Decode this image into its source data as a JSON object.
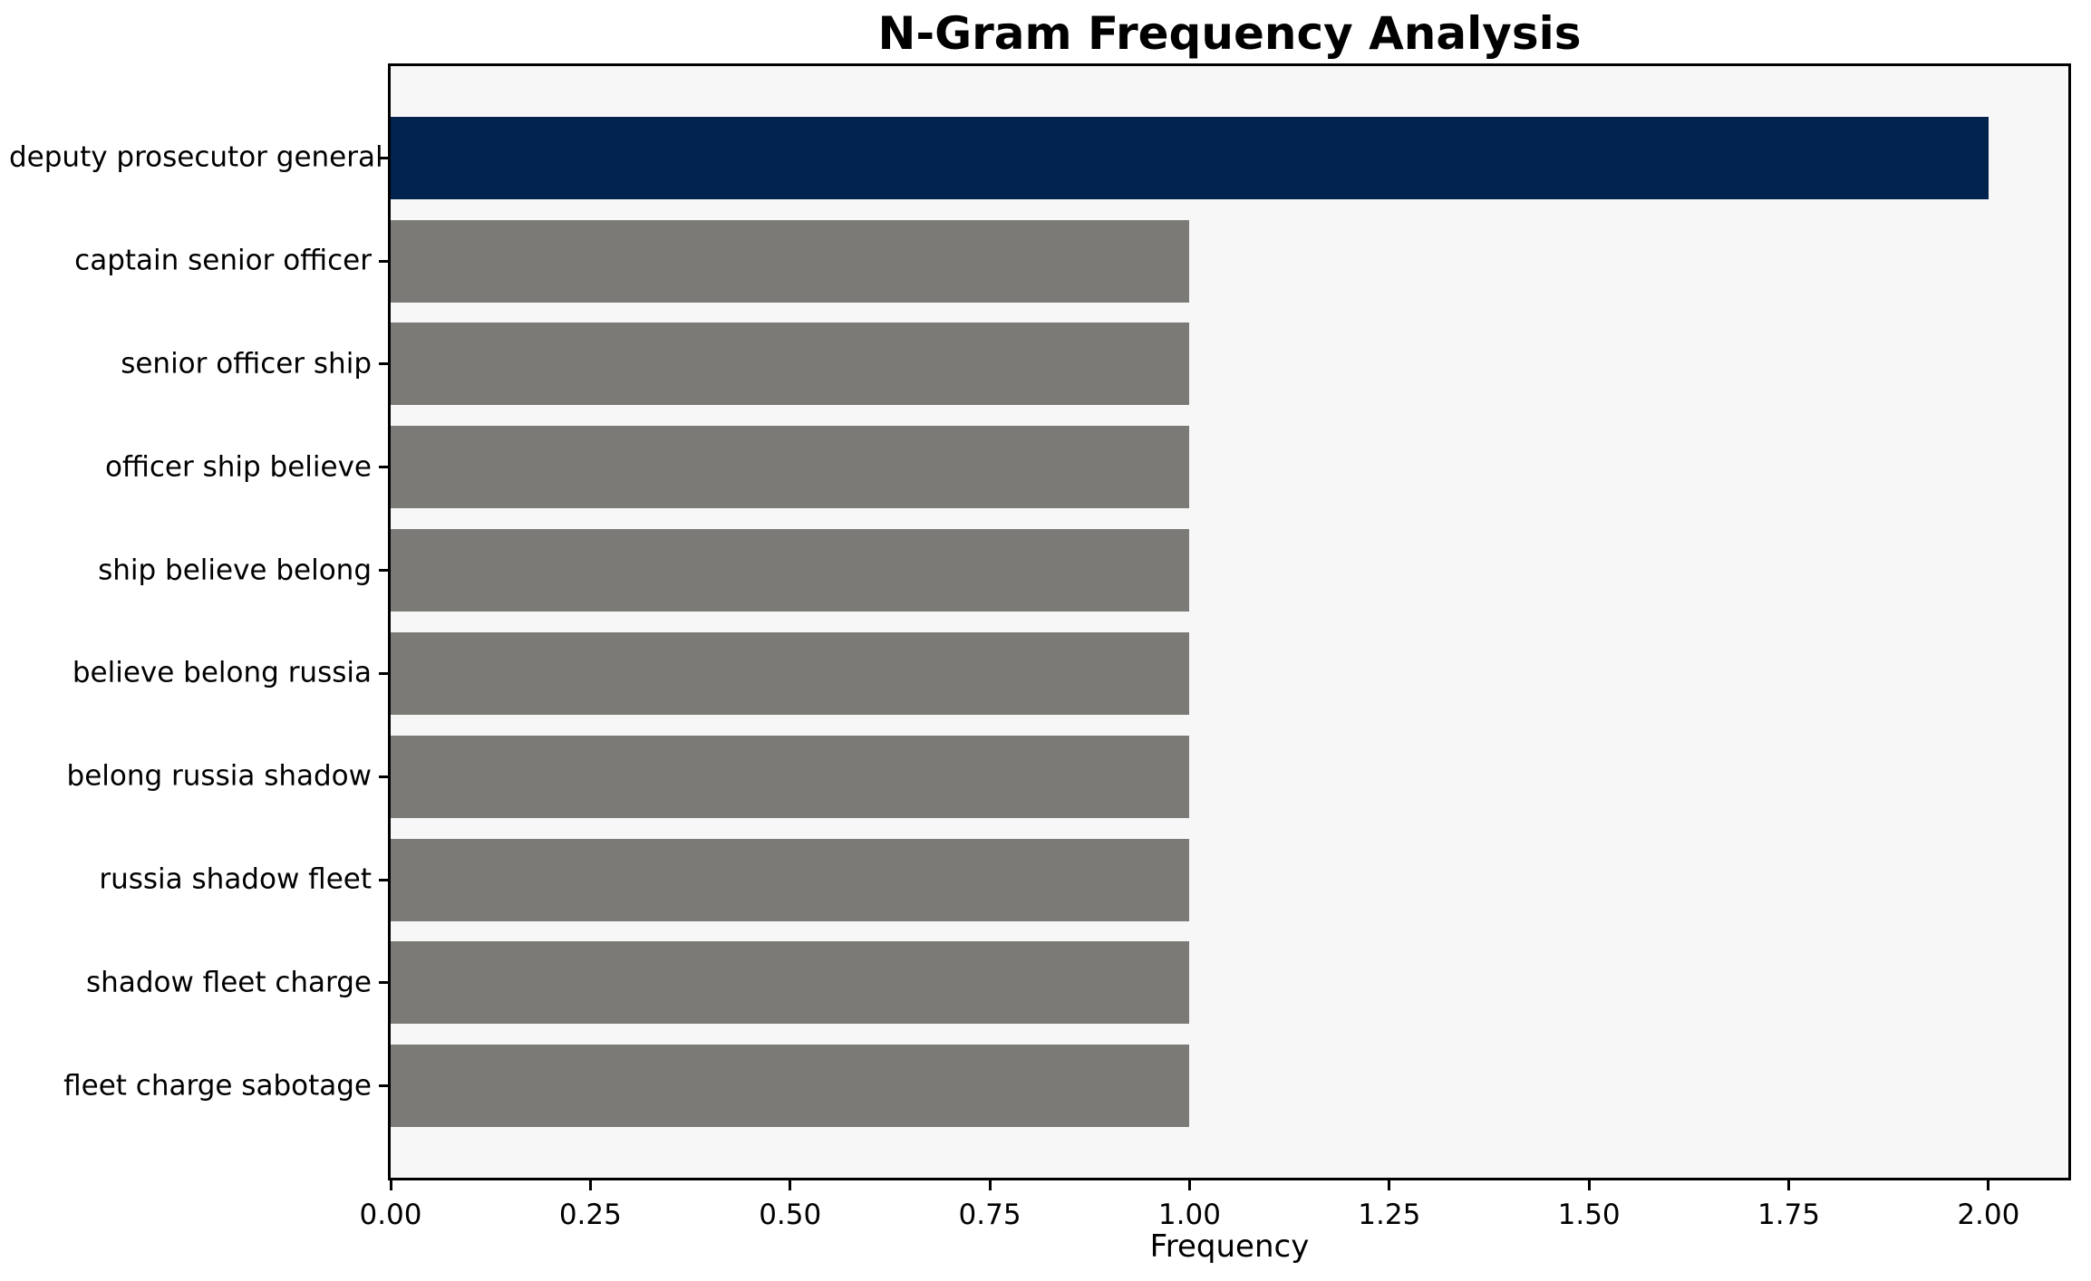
{
  "chart_data": {
    "type": "bar",
    "orientation": "horizontal",
    "title": "N-Gram Frequency Analysis",
    "xlabel": "Frequency",
    "ylabel": "",
    "categories": [
      "deputy prosecutor general",
      "captain senior officer",
      "senior officer ship",
      "officer ship believe",
      "ship believe belong",
      "believe belong russia",
      "belong russia shadow",
      "russia shadow fleet",
      "shadow fleet charge",
      "fleet charge sabotage"
    ],
    "values": [
      2,
      1,
      1,
      1,
      1,
      1,
      1,
      1,
      1,
      1
    ],
    "xlim": [
      0,
      2.1
    ],
    "x_ticks": [
      {
        "value": 0.0,
        "label": "0.00"
      },
      {
        "value": 0.25,
        "label": "0.25"
      },
      {
        "value": 0.5,
        "label": "0.50"
      },
      {
        "value": 0.75,
        "label": "0.75"
      },
      {
        "value": 1.0,
        "label": "1.00"
      },
      {
        "value": 1.25,
        "label": "1.25"
      },
      {
        "value": 1.5,
        "label": "1.50"
      },
      {
        "value": 1.75,
        "label": "1.75"
      },
      {
        "value": 2.0,
        "label": "2.00"
      }
    ],
    "highlight_index": 0,
    "colors": {
      "highlight_bar": "#02234d",
      "default_bar": "#7b7a77",
      "plot_background": "#f7f7f7",
      "figure_background": "#ffffff",
      "frame": "#000000",
      "text": "#000000"
    },
    "grid": false,
    "legend": null
  }
}
